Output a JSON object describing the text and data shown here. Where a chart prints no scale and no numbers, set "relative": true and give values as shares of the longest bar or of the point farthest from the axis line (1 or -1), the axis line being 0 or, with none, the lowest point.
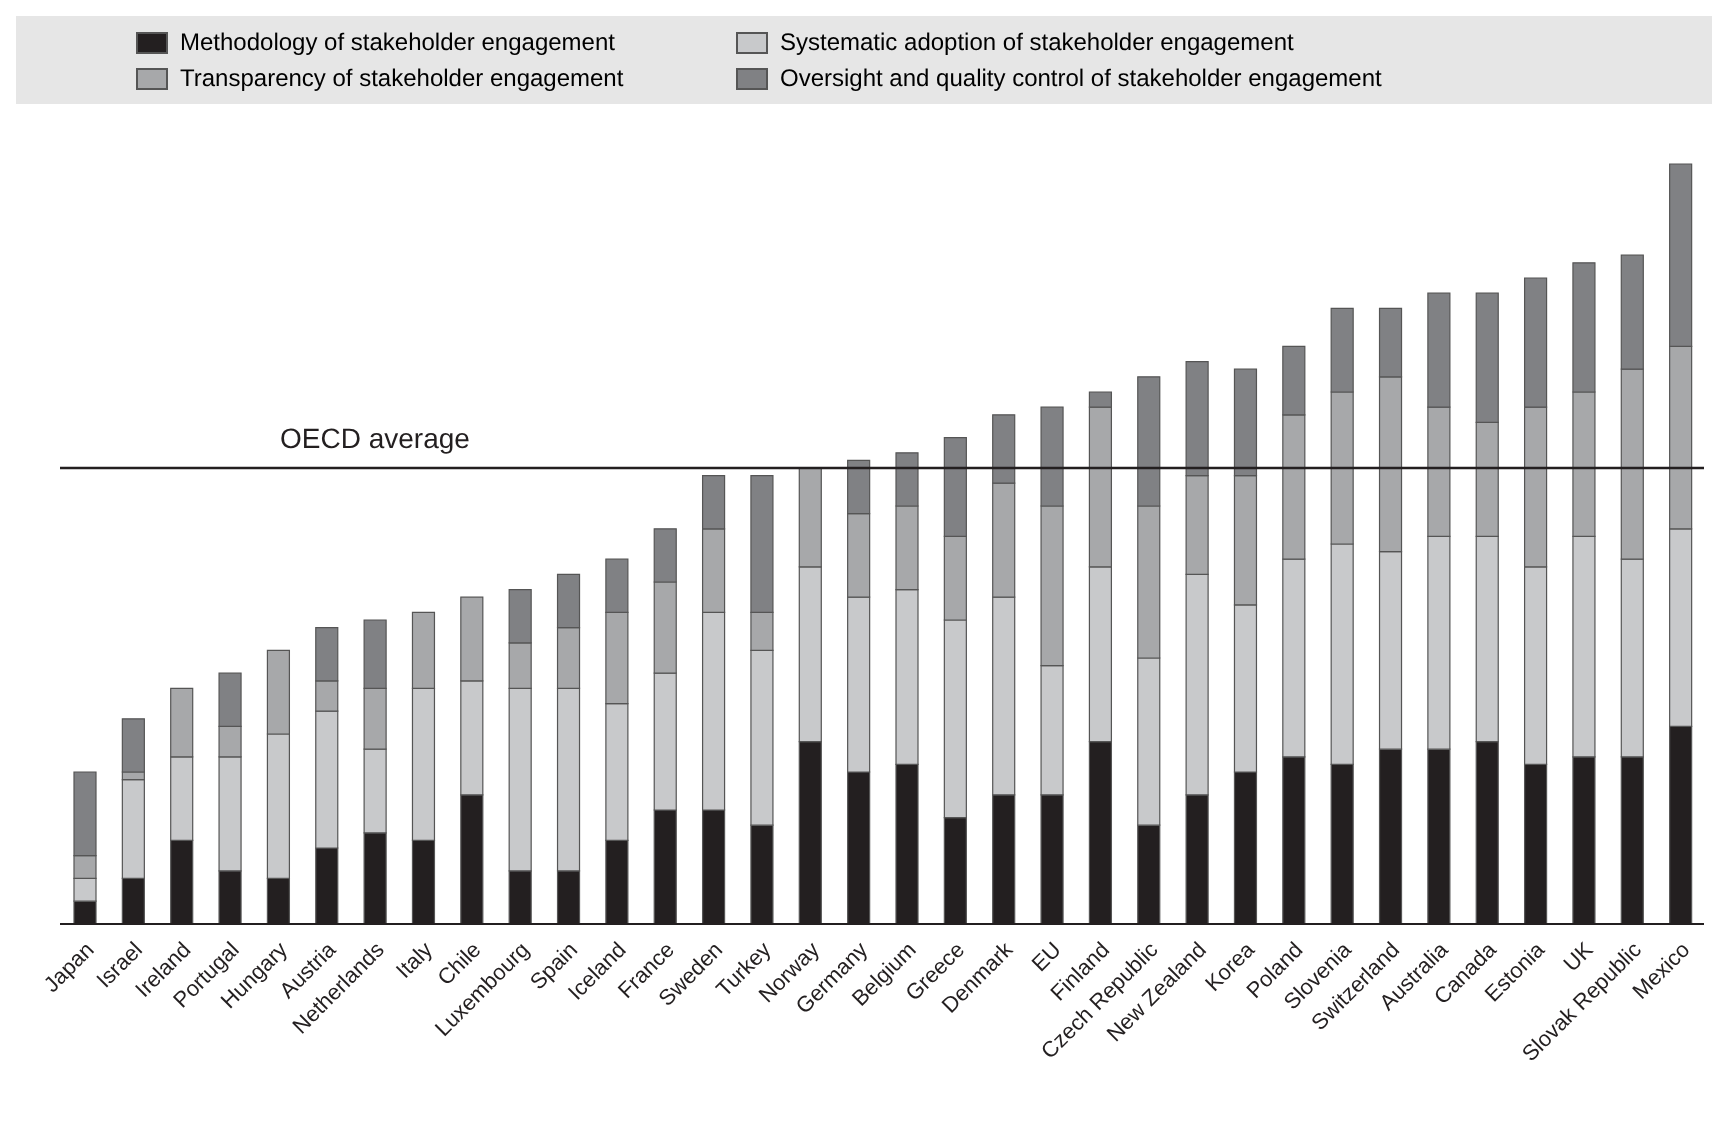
{
  "chart_data": {
    "type": "bar",
    "stacked": true,
    "relative": true,
    "legend": "top",
    "categories": [
      "Japan",
      "Israel",
      "Ireland",
      "Portugal",
      "Hungary",
      "Austria",
      "Netherlands",
      "Italy",
      "Chile",
      "Luxembourg",
      "Spain",
      "Iceland",
      "France",
      "Sweden",
      "Turkey",
      "Norway",
      "Germany",
      "Belgium",
      "Greece",
      "Denmark",
      "EU",
      "Finland",
      "Czech Republic",
      "New Zealand",
      "Korea",
      "Poland",
      "Slovenia",
      "Switzerland",
      "Australia",
      "Canada",
      "Estonia",
      "UK",
      "Slovak Republic",
      "Mexico"
    ],
    "series": [
      {
        "name": "Methodology of stakeholder engagement",
        "color": "#231f20",
        "values": [
          0.03,
          0.06,
          0.11,
          0.07,
          0.06,
          0.1,
          0.12,
          0.11,
          0.17,
          0.07,
          0.07,
          0.11,
          0.15,
          0.15,
          0.13,
          0.24,
          0.2,
          0.21,
          0.14,
          0.17,
          0.17,
          0.24,
          0.13,
          0.17,
          0.2,
          0.22,
          0.21,
          0.23,
          0.23,
          0.24,
          0.21,
          0.22,
          0.22,
          0.26
        ]
      },
      {
        "name": "Systematic adoption of stakeholder engagement",
        "color": "#c8c9cb",
        "values": [
          0.03,
          0.13,
          0.11,
          0.15,
          0.19,
          0.18,
          0.11,
          0.2,
          0.15,
          0.24,
          0.24,
          0.18,
          0.18,
          0.26,
          0.23,
          0.23,
          0.23,
          0.23,
          0.26,
          0.26,
          0.17,
          0.23,
          0.22,
          0.29,
          0.22,
          0.26,
          0.29,
          0.26,
          0.28,
          0.27,
          0.26,
          0.29,
          0.26,
          0.26
        ]
      },
      {
        "name": "Transparency of stakeholder engagement",
        "color": "#a7a8aa",
        "values": [
          0.03,
          0.01,
          0.09,
          0.04,
          0.11,
          0.04,
          0.08,
          0.1,
          0.11,
          0.06,
          0.08,
          0.12,
          0.12,
          0.11,
          0.05,
          0.13,
          0.11,
          0.11,
          0.11,
          0.15,
          0.21,
          0.21,
          0.2,
          0.13,
          0.17,
          0.19,
          0.2,
          0.23,
          0.17,
          0.15,
          0.21,
          0.19,
          0.25,
          0.24
        ]
      },
      {
        "name": "Oversight and quality control of stakeholder engagement",
        "color": "#808184",
        "values": [
          0.11,
          0.07,
          0,
          0.07,
          0,
          0.07,
          0.09,
          0,
          0,
          0.07,
          0.07,
          0.07,
          0.07,
          0.07,
          0.18,
          0,
          0.07,
          0.07,
          0.13,
          0.09,
          0.13,
          0.02,
          0.17,
          0.15,
          0.14,
          0.09,
          0.11,
          0.09,
          0.15,
          0.17,
          0.17,
          0.17,
          0.15,
          0.24
        ]
      }
    ],
    "ref_lines": [
      {
        "axis": "y",
        "value": 0.6,
        "label": "OECD average",
        "color": "#231f20"
      }
    ]
  }
}
